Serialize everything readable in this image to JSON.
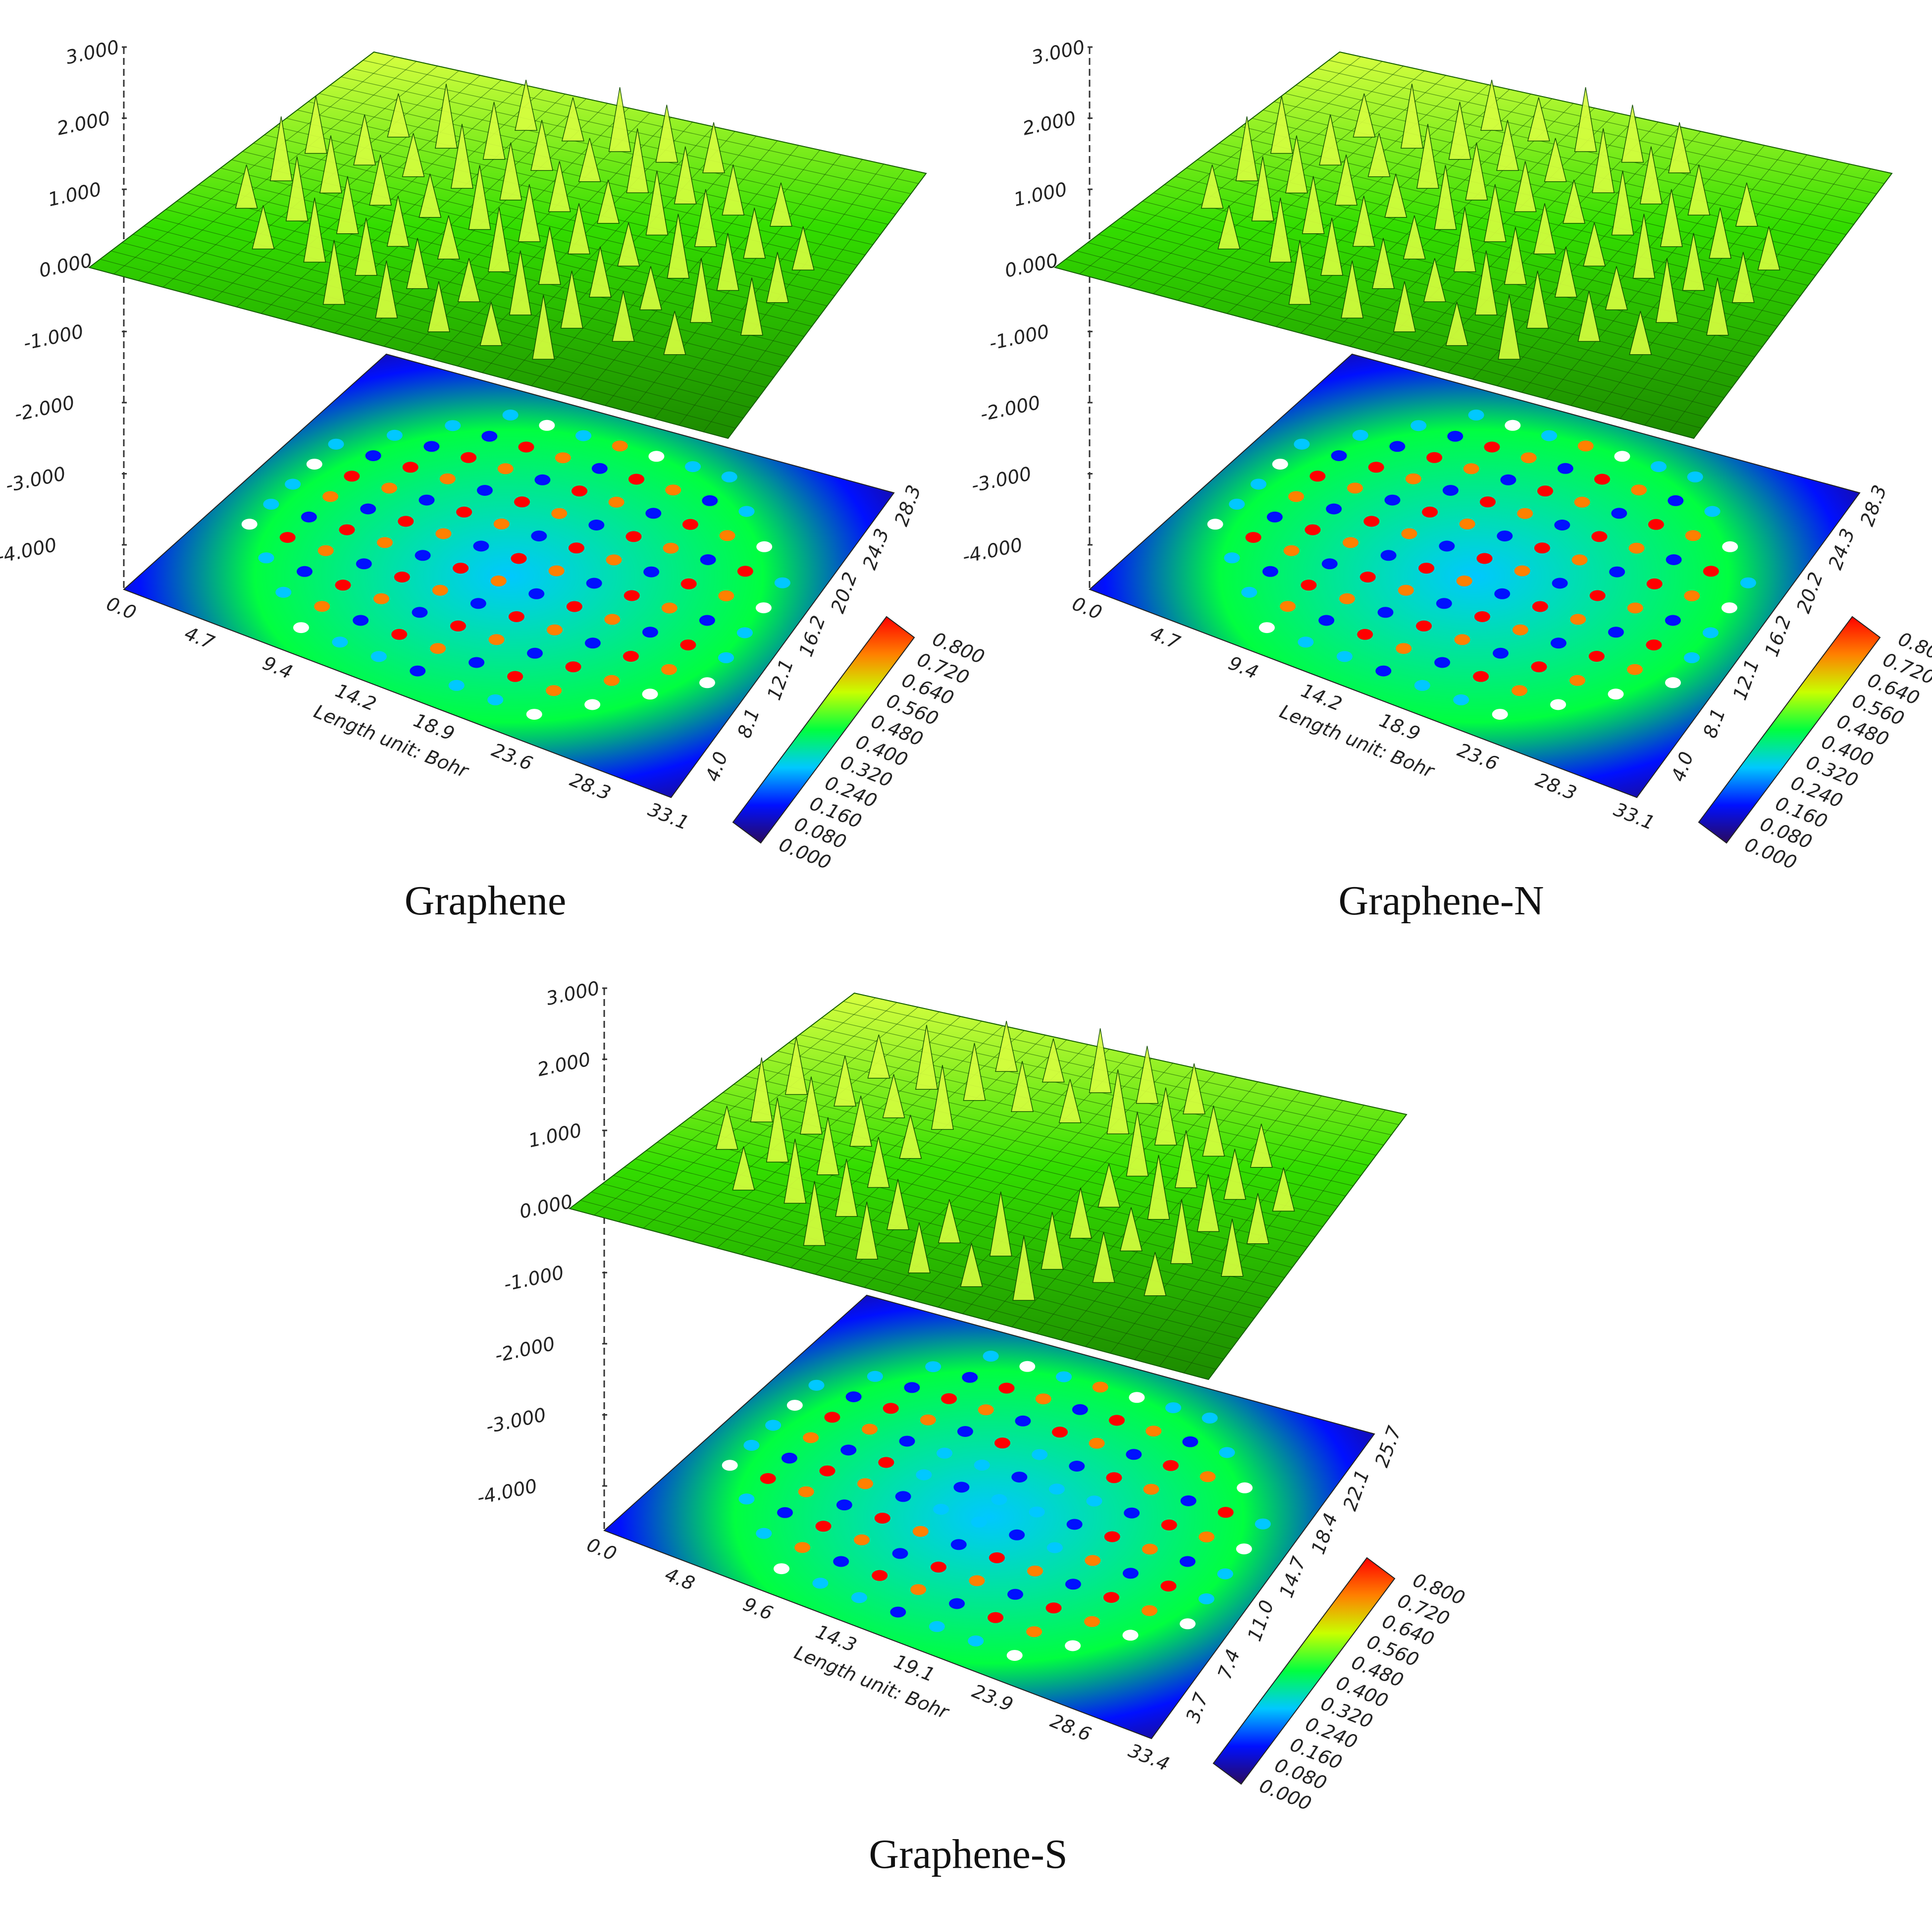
{
  "panels": [
    {
      "caption": "Graphene",
      "z_ticks": [
        "3.000",
        "2.000",
        "1.000",
        "0.000",
        "-1.000",
        "-2.000",
        "-3.000",
        "-4.000"
      ],
      "x_ticks": [
        "0.0",
        "4.7",
        "9.4",
        "14.2",
        "18.9",
        "23.6",
        "28.3",
        "33.1"
      ],
      "y_ticks": [
        "4.0",
        "8.1",
        "12.1",
        "16.2",
        "20.2",
        "24.3",
        "28.3"
      ],
      "axis_label": "Length unit: Bohr",
      "colorbar_ticks": [
        "0.000",
        "0.080",
        "0.160",
        "0.240",
        "0.320",
        "0.400",
        "0.480",
        "0.560",
        "0.640",
        "0.720",
        "0.800"
      ]
    },
    {
      "caption": "Graphene-N",
      "z_ticks": [
        "3.000",
        "2.000",
        "1.000",
        "0.000",
        "-1.000",
        "-2.000",
        "-3.000",
        "-4.000"
      ],
      "x_ticks": [
        "0.0",
        "4.7",
        "9.4",
        "14.2",
        "18.9",
        "23.6",
        "28.3",
        "33.1"
      ],
      "y_ticks": [
        "4.0",
        "8.1",
        "12.1",
        "16.2",
        "20.2",
        "24.3",
        "28.3"
      ],
      "axis_label": "Length unit: Bohr",
      "colorbar_ticks": [
        "0.000",
        "0.080",
        "0.160",
        "0.240",
        "0.320",
        "0.400",
        "0.480",
        "0.560",
        "0.640",
        "0.720",
        "0.800"
      ]
    },
    {
      "caption": "Graphene-S",
      "z_ticks": [
        "3.000",
        "2.000",
        "1.000",
        "0.000",
        "-1.000",
        "-2.000",
        "-3.000",
        "-4.000"
      ],
      "x_ticks": [
        "0.0",
        "4.8",
        "9.6",
        "14.3",
        "19.1",
        "23.9",
        "28.6",
        "33.4"
      ],
      "y_ticks": [
        "3.7",
        "7.4",
        "11.0",
        "14.7",
        "18.4",
        "22.1",
        "25.7"
      ],
      "axis_label": "Length unit: Bohr",
      "colorbar_ticks": [
        "0.000",
        "0.080",
        "0.160",
        "0.240",
        "0.320",
        "0.400",
        "0.480",
        "0.560",
        "0.640",
        "0.720",
        "0.800"
      ]
    }
  ],
  "chart_data": [
    {
      "type": "heatmap",
      "title": "Graphene",
      "zlim": [
        -4.0,
        3.0
      ],
      "xlim": [
        0.0,
        33.1
      ],
      "ylim": [
        0.0,
        28.3
      ],
      "xlabel": "Length unit: Bohr",
      "colorbar_range": [
        0.0,
        0.8
      ],
      "colormap": [
        "#2a0a5e",
        "#0010ff",
        "#00c8ff",
        "#00ff40",
        "#c8ff00",
        "#ff8000",
        "#ff0000"
      ],
      "surface_color": "#33dd00",
      "surface_highlight": "#d8ff40"
    },
    {
      "type": "heatmap",
      "title": "Graphene-N",
      "zlim": [
        -4.0,
        3.0
      ],
      "xlim": [
        0.0,
        33.1
      ],
      "ylim": [
        0.0,
        28.3
      ],
      "xlabel": "Length unit: Bohr",
      "colorbar_range": [
        0.0,
        0.8
      ],
      "colormap": [
        "#2a0a5e",
        "#0010ff",
        "#00c8ff",
        "#00ff40",
        "#c8ff00",
        "#ff8000",
        "#ff0000"
      ],
      "surface_color": "#33dd00",
      "surface_highlight": "#d8ff40"
    },
    {
      "type": "heatmap",
      "title": "Graphene-S",
      "zlim": [
        -4.0,
        3.0
      ],
      "xlim": [
        0.0,
        33.4
      ],
      "ylim": [
        0.0,
        25.7
      ],
      "xlabel": "Length unit: Bohr",
      "colorbar_range": [
        0.0,
        0.8
      ],
      "colormap": [
        "#2a0a5e",
        "#0010ff",
        "#00c8ff",
        "#00ff40",
        "#c8ff00",
        "#ff8000",
        "#ff0000"
      ],
      "surface_color": "#33dd00",
      "surface_highlight": "#d8ff40"
    }
  ]
}
